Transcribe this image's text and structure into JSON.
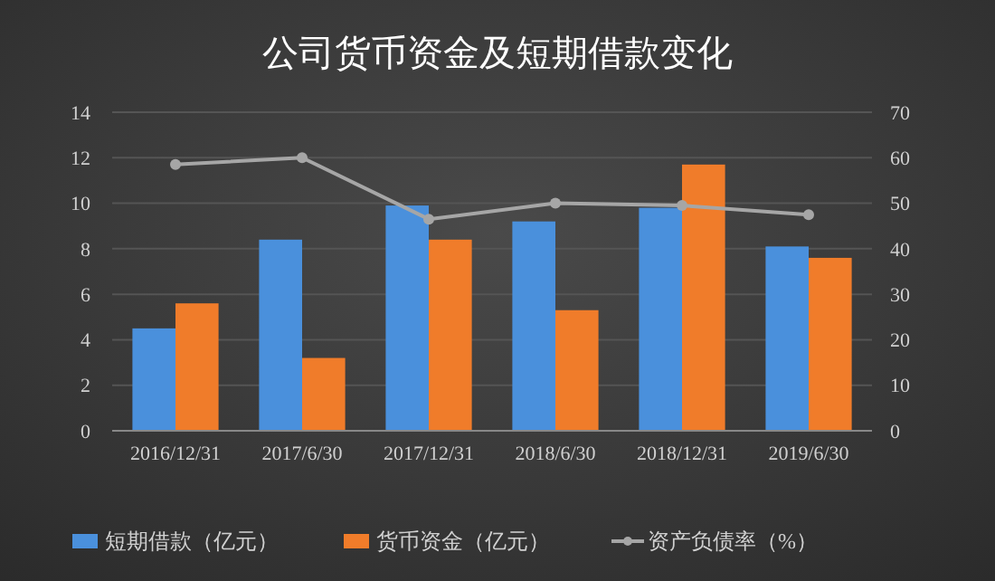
{
  "chart_data": {
    "type": "bar",
    "title": "公司货币资金及短期借款变化",
    "categories": [
      "2016/12/31",
      "2017/6/30",
      "2017/12/31",
      "2018/6/30",
      "2018/12/31",
      "2019/6/30"
    ],
    "series": [
      {
        "name": "短期借款（亿元）",
        "color": "#4a90dc",
        "values": [
          4.5,
          8.4,
          9.9,
          9.2,
          9.8,
          8.1
        ]
      },
      {
        "name": "货币资金（亿元）",
        "color": "#f07c2a",
        "values": [
          5.6,
          3.2,
          8.4,
          5.3,
          11.7,
          7.6
        ]
      },
      {
        "name": "资产负债率（%）",
        "type": "line",
        "axis": "y2",
        "color": "#a6a6a6",
        "marker": "circle",
        "values": [
          58.5,
          60,
          46.5,
          50,
          49.5,
          47.5
        ]
      }
    ],
    "ylim": [
      0,
      14
    ],
    "yticks": [
      0,
      2,
      4,
      6,
      8,
      10,
      12,
      14
    ],
    "y2lim": [
      0,
      70
    ],
    "y2ticks": [
      0,
      10,
      20,
      30,
      40,
      50,
      60,
      70
    ],
    "grid": "y",
    "legend": "bottom"
  }
}
